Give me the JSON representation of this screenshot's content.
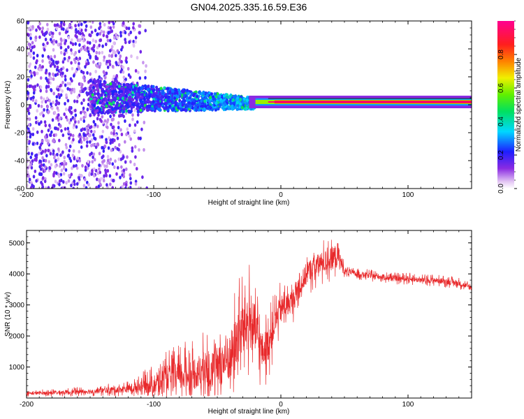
{
  "figure_title": "GN04.2025.335.16.59.E36",
  "chart_data": [
    {
      "type": "heatmap",
      "title": "GN04.2025.335.16.59.E36",
      "xlabel": "Height of straight line (km)",
      "ylabel": "Frequency (Hz)",
      "xlim": [
        -200,
        150
      ],
      "ylim": [
        -60,
        60
      ],
      "xticks": [
        -200,
        -100,
        0,
        100
      ],
      "xtick_labels": [
        "-200",
        "-100",
        "0",
        "100"
      ],
      "yticks": [
        -60,
        -40,
        -20,
        0,
        20,
        40,
        60
      ],
      "ytick_labels": [
        "-60",
        "-40",
        "-20",
        "0",
        "20",
        "40",
        "60"
      ],
      "colorbar": {
        "label": "Normalized spectral amplitude",
        "range": [
          0,
          1
        ],
        "ticks": [
          0.0,
          0.2,
          0.4,
          0.6,
          0.8
        ],
        "tick_labels": [
          "0.0",
          "0.2",
          "0.4",
          "0.6",
          "0.8"
        ],
        "colormap": "rainbow (purple-blue-cyan-green-yellow-red-magenta)"
      },
      "regions": [
        {
          "x_range": [
            -200,
            -105
          ],
          "freq_range": [
            -60,
            60
          ],
          "amplitude": 0.05,
          "description": "scattered low-amplitude noise"
        },
        {
          "x_range": [
            -150,
            -20
          ],
          "freq_range": [
            -10,
            18
          ],
          "amplitude": 0.2,
          "description": "broadband signal band narrowing with height"
        },
        {
          "x_range": [
            -20,
            150
          ],
          "freq_range": [
            0,
            4
          ],
          "amplitude": 0.95,
          "description": "narrow high-amplitude line near 2 Hz"
        }
      ]
    },
    {
      "type": "line",
      "xlabel": "Height of straight line (km)",
      "ylabel": "SNR (10 * v/v)",
      "xlim": [
        -200,
        150
      ],
      "ylim": [
        0,
        5400
      ],
      "xticks": [
        -200,
        -100,
        0,
        100
      ],
      "xtick_labels": [
        "-200",
        "-100",
        "0",
        "100"
      ],
      "yticks": [
        1000,
        2000,
        3000,
        4000,
        5000
      ],
      "ytick_labels": [
        "1000",
        "2000",
        "3000",
        "4000",
        "5000"
      ],
      "series": [
        {
          "name": "SNR",
          "color": "#e8282a",
          "x": [
            -200,
            -180,
            -160,
            -140,
            -120,
            -100,
            -90,
            -80,
            -70,
            -60,
            -50,
            -40,
            -35,
            -30,
            -25,
            -20,
            -15,
            -10,
            -5,
            0,
            5,
            10,
            15,
            20,
            25,
            30,
            35,
            40,
            45,
            50,
            55,
            60,
            70,
            80,
            90,
            100,
            110,
            120,
            130,
            140,
            150
          ],
          "y": [
            150,
            170,
            200,
            240,
            300,
            450,
            600,
            700,
            800,
            900,
            1000,
            1300,
            1800,
            2300,
            2500,
            2200,
            1500,
            1700,
            2400,
            2900,
            3000,
            3200,
            3600,
            4000,
            4200,
            4300,
            4400,
            4500,
            4600,
            4100,
            4050,
            4000,
            3950,
            3900,
            3850,
            3850,
            3800,
            3800,
            3750,
            3700,
            3550
          ],
          "noise_amplitude": [
            80,
            100,
            120,
            150,
            200,
            500,
            700,
            800,
            900,
            1000,
            1100,
            1300,
            1500,
            1500,
            1500,
            1300,
            1000,
            900,
            800,
            700,
            600,
            600,
            600,
            600,
            600,
            600,
            600,
            600,
            700,
            200,
            150,
            150,
            150,
            150,
            150,
            150,
            150,
            150,
            150,
            150,
            150
          ]
        }
      ]
    }
  ]
}
